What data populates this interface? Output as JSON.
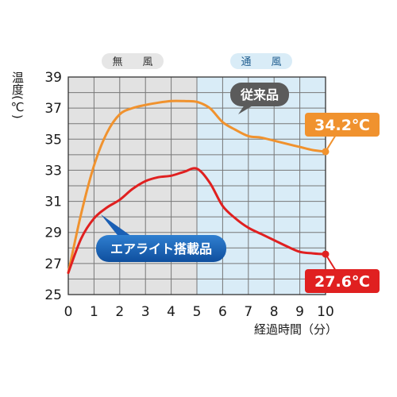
{
  "chart_data": {
    "type": "line",
    "ylabel": "温度(℃)",
    "xlabel": "経過時間（分）",
    "xlim": [
      0,
      10
    ],
    "ylim": [
      25,
      39
    ],
    "x_ticks": [
      "0",
      "1",
      "2",
      "3",
      "4",
      "5",
      "6",
      "7",
      "8",
      "9",
      "10"
    ],
    "y_ticks": [
      "25",
      "27",
      "29",
      "31",
      "33",
      "35",
      "37",
      "39"
    ],
    "grid": true,
    "regions": [
      {
        "label": "無　風",
        "x_range": [
          0,
          5
        ],
        "color": "#e2e2e2"
      },
      {
        "label": "通　風",
        "x_range": [
          5,
          10
        ],
        "color": "#d9ecf7"
      }
    ],
    "series": [
      {
        "name": "従来品",
        "color": "#f0922e",
        "x": [
          0,
          0.5,
          1,
          1.5,
          2,
          2.5,
          3,
          3.5,
          4,
          4.5,
          5,
          5.5,
          6,
          6.5,
          7,
          7.5,
          8,
          8.5,
          9,
          9.5,
          10
        ],
        "y": [
          26.4,
          30.2,
          33.3,
          35.4,
          36.6,
          37.0,
          37.2,
          37.35,
          37.45,
          37.45,
          37.4,
          37.0,
          36.1,
          35.6,
          35.2,
          35.1,
          34.9,
          34.7,
          34.5,
          34.3,
          34.2
        ],
        "end_label": "34.2℃",
        "label_color": "#5b5b5b"
      },
      {
        "name": "エアライト搭載品",
        "color": "#e02020",
        "x": [
          0,
          0.5,
          1,
          1.5,
          2,
          2.5,
          3,
          3.5,
          4,
          4.5,
          5,
          5.5,
          6,
          6.5,
          7,
          7.5,
          8,
          8.5,
          9,
          9.5,
          10
        ],
        "y": [
          26.4,
          28.6,
          29.9,
          30.6,
          31.1,
          31.8,
          32.3,
          32.55,
          32.65,
          32.9,
          33.1,
          32.2,
          30.7,
          29.9,
          29.3,
          28.9,
          28.5,
          28.1,
          27.75,
          27.65,
          27.6
        ],
        "end_label": "27.6℃",
        "label_color": "#1a5fb4"
      }
    ]
  }
}
